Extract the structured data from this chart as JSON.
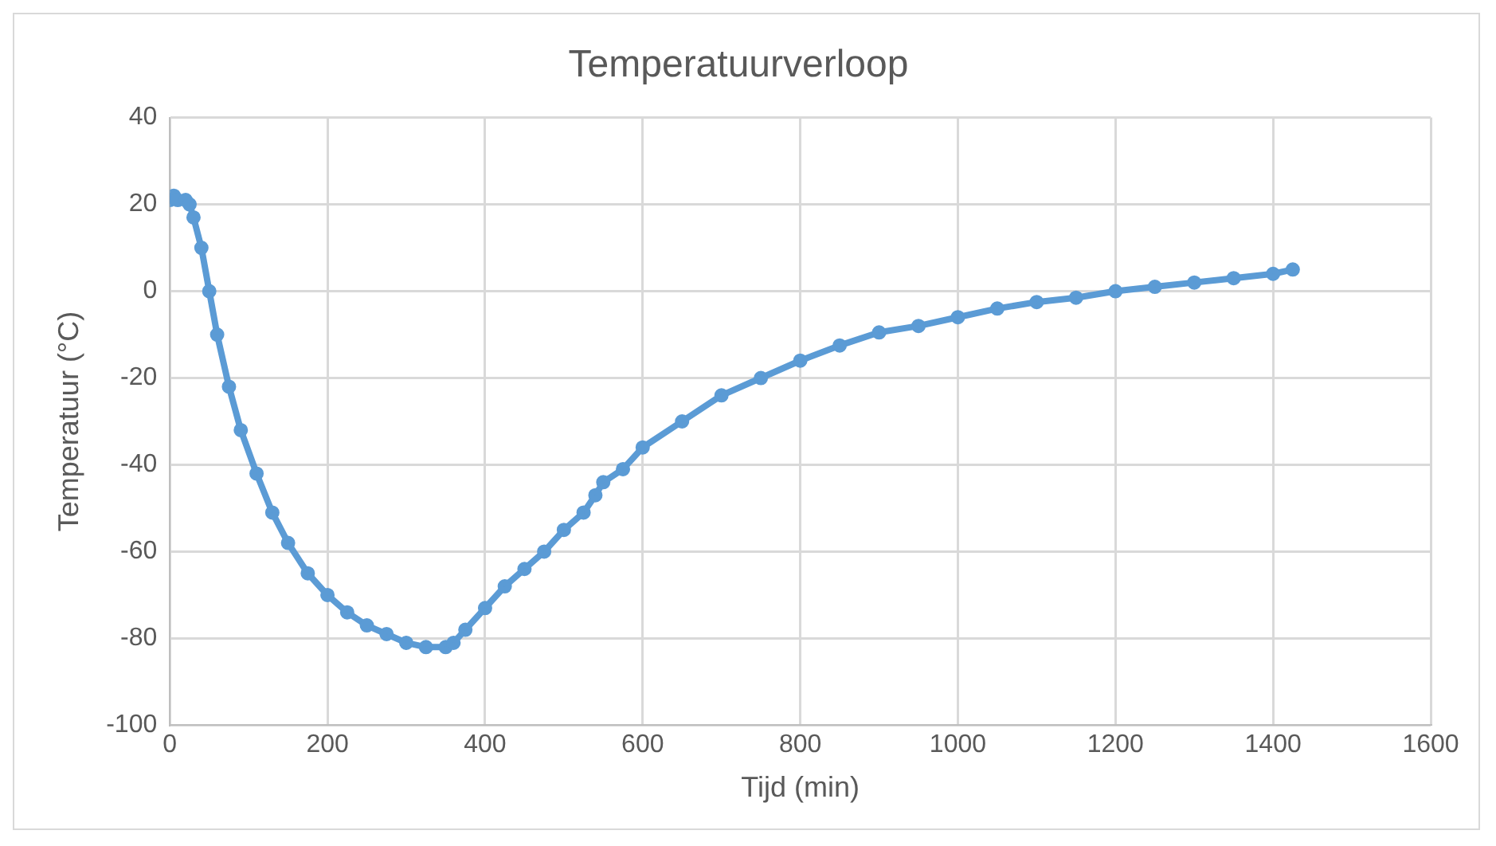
{
  "chart_data": {
    "type": "line",
    "title": "Temperatuurverloop",
    "xlabel": "Tijd (min)",
    "ylabel": "Temperatuur (°C)",
    "xlim": [
      0,
      1600
    ],
    "xticks": [
      0,
      200,
      400,
      600,
      800,
      1000,
      1200,
      1400,
      1600
    ],
    "ylim": [
      -100,
      40
    ],
    "yticks": [
      -100,
      -80,
      -60,
      -40,
      -20,
      0,
      20,
      40
    ],
    "grid": true,
    "marker": "circle",
    "legend": false,
    "series": [
      {
        "color": "#5b9bd5",
        "x": [
          0,
          5,
          10,
          20,
          25,
          30,
          40,
          50,
          60,
          75,
          90,
          110,
          130,
          150,
          175,
          200,
          225,
          250,
          275,
          300,
          325,
          350,
          360,
          375,
          400,
          425,
          450,
          475,
          500,
          525,
          540,
          550,
          575,
          600,
          650,
          700,
          750,
          800,
          850,
          900,
          950,
          1000,
          1050,
          1100,
          1150,
          1200,
          1250,
          1300,
          1350,
          1400,
          1425
        ],
        "values": [
          21,
          22,
          21,
          21,
          20,
          17,
          10,
          0,
          -10,
          -22,
          -32,
          -42,
          -51,
          -58,
          -65,
          -70,
          -74,
          -77,
          -79,
          -81,
          -82,
          -82,
          -81,
          -78,
          -73,
          -68,
          -64,
          -60,
          -55,
          -51,
          -47,
          -44,
          -41,
          -36,
          -30,
          -24,
          -20,
          -16,
          -12.5,
          -9.5,
          -8,
          -6,
          -4,
          -2.5,
          -1.5,
          0,
          1,
          2,
          3,
          4,
          5
        ]
      }
    ]
  }
}
